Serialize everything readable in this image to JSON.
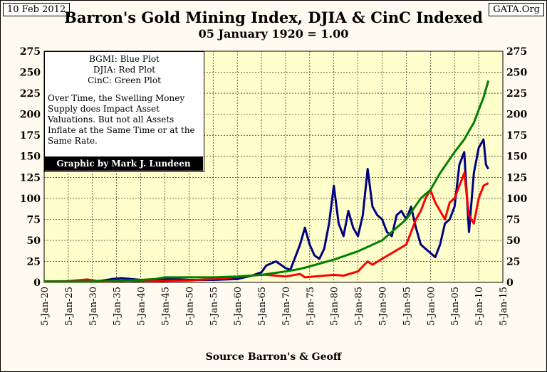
{
  "header": {
    "date": "10 Feb 2012",
    "source_site": "GATA.Org",
    "title": "Barron's Gold Mining Index, DJIA & CinC Indexed",
    "subtitle": "05 January 1920 = 1.00"
  },
  "legend": {
    "lines": [
      "BGMI: Blue Plot",
      "DJIA: Red Plot",
      "CinC: Green Plot"
    ],
    "note": "Over Time, the Swelling Money Supply does Impact Asset Valuations.  But not all Assets Inflate at the Same Time or at the Same Rate.",
    "credit": "Graphic by Mark J. Lundeen"
  },
  "colors": {
    "plot_background": "#ffffcc",
    "bgmi": "#000080",
    "djia": "#ff0000",
    "cinc": "#008000"
  },
  "chart_data": {
    "type": "line",
    "title": "Barron's Gold Mining Index, DJIA & CinC Indexed",
    "subtitle": "05 January 1920 = 1.00",
    "xlabel": "Source Barron's & Geoff",
    "ylabel": "",
    "ylim": [
      0,
      275
    ],
    "xlim": [
      1920,
      2015
    ],
    "y_ticks": [
      0,
      25,
      50,
      75,
      100,
      125,
      150,
      175,
      200,
      225,
      250,
      275
    ],
    "x_tick_labels": [
      "5-Jan-20",
      "5-Jan-25",
      "5-Jan-30",
      "5-Jan-35",
      "5-Jan-40",
      "5-Jan-45",
      "5-Jan-50",
      "5-Jan-55",
      "5-Jan-60",
      "5-Jan-65",
      "5-Jan-70",
      "5-Jan-75",
      "5-Jan-80",
      "5-Jan-85",
      "5-Jan-90",
      "5-Jan-95",
      "5-Jan-00",
      "5-Jan-05",
      "5-Jan-10",
      "5-Jan-15"
    ],
    "grid": true,
    "legend_position": "top-left",
    "series": [
      {
        "name": "BGMI",
        "color": "#000080",
        "points": [
          [
            1920,
            1
          ],
          [
            1925,
            1
          ],
          [
            1930,
            1
          ],
          [
            1932,
            2
          ],
          [
            1934,
            4
          ],
          [
            1936,
            5
          ],
          [
            1938,
            4
          ],
          [
            1940,
            3
          ],
          [
            1942,
            2
          ],
          [
            1944,
            3
          ],
          [
            1946,
            4
          ],
          [
            1950,
            3
          ],
          [
            1955,
            3
          ],
          [
            1960,
            4
          ],
          [
            1963,
            8
          ],
          [
            1965,
            12
          ],
          [
            1966,
            20
          ],
          [
            1968,
            25
          ],
          [
            1970,
            17
          ],
          [
            1971,
            15
          ],
          [
            1973,
            45
          ],
          [
            1974,
            65
          ],
          [
            1975,
            45
          ],
          [
            1976,
            32
          ],
          [
            1977,
            28
          ],
          [
            1978,
            40
          ],
          [
            1979,
            70
          ],
          [
            1980,
            115
          ],
          [
            1981,
            70
          ],
          [
            1982,
            55
          ],
          [
            1983,
            85
          ],
          [
            1984,
            65
          ],
          [
            1985,
            55
          ],
          [
            1986,
            80
          ],
          [
            1987,
            135
          ],
          [
            1988,
            90
          ],
          [
            1989,
            80
          ],
          [
            1990,
            75
          ],
          [
            1991,
            60
          ],
          [
            1992,
            55
          ],
          [
            1993,
            80
          ],
          [
            1994,
            85
          ],
          [
            1995,
            75
          ],
          [
            1996,
            90
          ],
          [
            1997,
            65
          ],
          [
            1998,
            45
          ],
          [
            1999,
            40
          ],
          [
            2000,
            35
          ],
          [
            2001,
            30
          ],
          [
            2002,
            45
          ],
          [
            2003,
            70
          ],
          [
            2004,
            75
          ],
          [
            2005,
            90
          ],
          [
            2006,
            140
          ],
          [
            2007,
            155
          ],
          [
            2008,
            60
          ],
          [
            2009,
            130
          ],
          [
            2010,
            160
          ],
          [
            2011,
            170
          ],
          [
            2011.5,
            140
          ],
          [
            2012,
            135
          ]
        ]
      },
      {
        "name": "DJIA",
        "color": "#ff0000",
        "points": [
          [
            1920,
            1
          ],
          [
            1925,
            1.5
          ],
          [
            1929,
            3.5
          ],
          [
            1932,
            0.6
          ],
          [
            1937,
            2
          ],
          [
            1942,
            1.2
          ],
          [
            1946,
            2
          ],
          [
            1950,
            2.3
          ],
          [
            1955,
            4
          ],
          [
            1960,
            6.5
          ],
          [
            1965,
            9
          ],
          [
            1966,
            9
          ],
          [
            1970,
            7
          ],
          [
            1973,
            10
          ],
          [
            1974,
            6
          ],
          [
            1980,
            9
          ],
          [
            1982,
            8
          ],
          [
            1985,
            13
          ],
          [
            1987,
            25
          ],
          [
            1988,
            21
          ],
          [
            1990,
            28
          ],
          [
            1995,
            45
          ],
          [
            1997,
            75
          ],
          [
            1998,
            85
          ],
          [
            1999,
            100
          ],
          [
            2000,
            110
          ],
          [
            2001,
            95
          ],
          [
            2002,
            85
          ],
          [
            2003,
            75
          ],
          [
            2004,
            95
          ],
          [
            2005,
            100
          ],
          [
            2006,
            115
          ],
          [
            2007,
            130
          ],
          [
            2008,
            80
          ],
          [
            2009,
            70
          ],
          [
            2010,
            100
          ],
          [
            2011,
            115
          ],
          [
            2012,
            118
          ]
        ]
      },
      {
        "name": "CinC",
        "color": "#008000",
        "points": [
          [
            1920,
            1
          ],
          [
            1930,
            1
          ],
          [
            1935,
            2
          ],
          [
            1940,
            3
          ],
          [
            1943,
            4
          ],
          [
            1945,
            6
          ],
          [
            1950,
            6
          ],
          [
            1955,
            6
          ],
          [
            1960,
            7
          ],
          [
            1965,
            9
          ],
          [
            1970,
            13
          ],
          [
            1973,
            16
          ],
          [
            1975,
            19
          ],
          [
            1980,
            27
          ],
          [
            1985,
            37
          ],
          [
            1990,
            50
          ],
          [
            1995,
            75
          ],
          [
            1998,
            100
          ],
          [
            2000,
            110
          ],
          [
            2002,
            130
          ],
          [
            2005,
            155
          ],
          [
            2007,
            170
          ],
          [
            2008,
            180
          ],
          [
            2009,
            190
          ],
          [
            2010,
            205
          ],
          [
            2011,
            220
          ],
          [
            2012,
            240
          ]
        ]
      }
    ]
  }
}
